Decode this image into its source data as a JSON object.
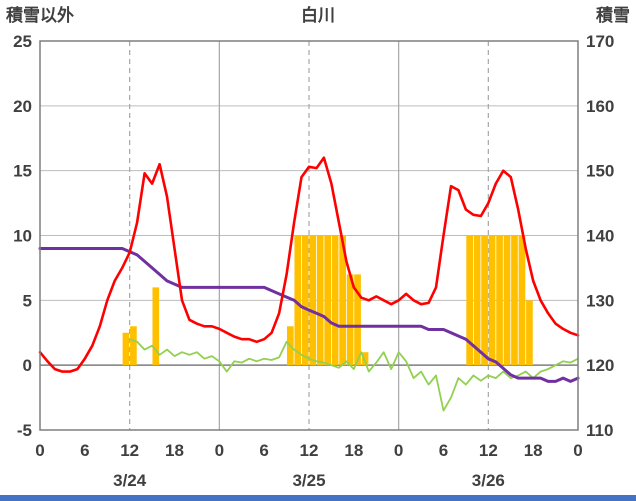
{
  "header": {
    "left_axis_label": "積雪以外",
    "title": "白川",
    "right_axis_label": "積雪"
  },
  "chart_data": {
    "type": "line+bar",
    "title": "白川",
    "x_hours_total": 72,
    "x_tick_hours": [
      0,
      6,
      12,
      18,
      24,
      30,
      36,
      42,
      48,
      54,
      60,
      66,
      72
    ],
    "x_tick_labels": [
      "0",
      "6",
      "12",
      "18",
      "0",
      "6",
      "12",
      "18",
      "0",
      "6",
      "12",
      "18",
      "0"
    ],
    "date_labels": [
      {
        "hour": 12,
        "label": "3/24"
      },
      {
        "hour": 36,
        "label": "3/25"
      },
      {
        "hour": 60,
        "label": "3/26"
      }
    ],
    "left_axis": {
      "label": "積雪以外",
      "min": -5,
      "max": 25,
      "ticks": [
        "25",
        "20",
        "15",
        "10",
        "5",
        "0",
        "-5"
      ],
      "tick_values": [
        25,
        20,
        15,
        10,
        5,
        0,
        -5
      ]
    },
    "right_axis": {
      "label": "積雪",
      "min": 110,
      "max": 170,
      "ticks": [
        "170",
        "160",
        "150",
        "140",
        "130",
        "120",
        "110"
      ],
      "tick_values": [
        170,
        160,
        150,
        140,
        130,
        120,
        110
      ]
    },
    "gridlines": {
      "vertical_solid_hours": [
        24,
        48
      ],
      "vertical_dashed_hours": [
        12,
        36,
        60
      ],
      "horizontal_at_left_values": [
        20,
        15,
        10,
        5,
        0,
        -5
      ],
      "zero_line_left_value": 0
    },
    "colors": {
      "red_line": "#ff0000",
      "purple_line": "#7030a0",
      "green_line": "#92d050",
      "orange_bars": "#ffc000",
      "grid": "#bdbdbd",
      "border": "#7f7f7f",
      "zero_line": "#7f7f7f",
      "text": "#404040",
      "bottom_bar": "#4472c4"
    },
    "series": [
      {
        "name": "red-line",
        "type": "line",
        "axis": "left",
        "start_hour": 0,
        "values": [
          1.0,
          0.3,
          -0.3,
          -0.5,
          -0.5,
          -0.3,
          0.5,
          1.5,
          3.0,
          5.0,
          6.5,
          7.5,
          8.7,
          11.0,
          14.8,
          14.0,
          15.5,
          13.0,
          9.0,
          5.0,
          3.5,
          3.2,
          3.0,
          3.0,
          2.8,
          2.5,
          2.2,
          2.0,
          2.0,
          1.8,
          2.0,
          2.5,
          4.0,
          7.0,
          11.0,
          14.5,
          15.3,
          15.2,
          16.0,
          14.0,
          11.0,
          8.0,
          6.0,
          5.2,
          5.0,
          5.3,
          5.0,
          4.7,
          5.0,
          5.5,
          5.0,
          4.7,
          4.8,
          6.0,
          10.0,
          13.8,
          13.5,
          12.0,
          11.6,
          11.5,
          12.5,
          14.0,
          15.0,
          14.5,
          12.0,
          9.0,
          6.5,
          5.0,
          4.0,
          3.2,
          2.8,
          2.5,
          2.3
        ]
      },
      {
        "name": "purple-line",
        "type": "line",
        "axis": "right",
        "start_hour": 0,
        "values": [
          138,
          138,
          138,
          138,
          138,
          138,
          138,
          138,
          138,
          138,
          138,
          138,
          137.5,
          137,
          136,
          135,
          134,
          133,
          132.5,
          132,
          132,
          132,
          132,
          132,
          132,
          132,
          132,
          132,
          132,
          132,
          132,
          131.5,
          131,
          130.5,
          130,
          129,
          128.5,
          128,
          127.5,
          126.5,
          126,
          126,
          126,
          126,
          126,
          126,
          126,
          126,
          126,
          126,
          126,
          126,
          125.5,
          125.5,
          125.5,
          125,
          124.5,
          124,
          123,
          122,
          121,
          120.5,
          119.5,
          118.5,
          118,
          118,
          118,
          118,
          117.5,
          117.5,
          118,
          117.5,
          118
        ]
      },
      {
        "name": "green-line",
        "type": "line",
        "axis": "left",
        "start_hour": 12,
        "values": [
          2.0,
          1.8,
          1.2,
          1.5,
          0.8,
          1.2,
          0.7,
          1.0,
          0.8,
          1.0,
          0.5,
          0.7,
          0.3,
          -0.5,
          0.3,
          0.2,
          0.5,
          0.3,
          0.5,
          0.4,
          0.6,
          1.8,
          1.2,
          0.8,
          0.5,
          0.3,
          0.2,
          0.0,
          -0.2,
          0.3,
          -0.3,
          1.0,
          -0.5,
          0.2,
          1.0,
          -0.3,
          1.0,
          0.3,
          -1.0,
          -0.5,
          -1.5,
          -0.8,
          -3.5,
          -2.5,
          -1.0,
          -1.5,
          -0.8,
          -1.2,
          -0.8,
          -1.0,
          -0.5,
          -1.0,
          -0.8,
          -0.5,
          -1.0,
          -0.5,
          -0.3,
          0.0,
          0.3,
          0.2,
          0.5
        ]
      },
      {
        "name": "orange-bars",
        "type": "bar",
        "axis": "left",
        "bars": [
          {
            "hour": 11,
            "value": 2.5
          },
          {
            "hour": 12,
            "value": 3
          },
          {
            "hour": 15,
            "value": 6
          },
          {
            "hour": 33,
            "value": 3
          },
          {
            "hour": 34,
            "value": 10
          },
          {
            "hour": 35,
            "value": 10
          },
          {
            "hour": 36,
            "value": 10
          },
          {
            "hour": 37,
            "value": 10
          },
          {
            "hour": 38,
            "value": 10
          },
          {
            "hour": 39,
            "value": 10
          },
          {
            "hour": 40,
            "value": 10
          },
          {
            "hour": 41,
            "value": 7
          },
          {
            "hour": 42,
            "value": 7
          },
          {
            "hour": 43,
            "value": 1
          },
          {
            "hour": 57,
            "value": 10
          },
          {
            "hour": 58,
            "value": 10
          },
          {
            "hour": 59,
            "value": 10
          },
          {
            "hour": 60,
            "value": 10
          },
          {
            "hour": 61,
            "value": 10
          },
          {
            "hour": 62,
            "value": 10
          },
          {
            "hour": 63,
            "value": 10
          },
          {
            "hour": 64,
            "value": 10
          },
          {
            "hour": 65,
            "value": 5
          }
        ]
      }
    ]
  }
}
